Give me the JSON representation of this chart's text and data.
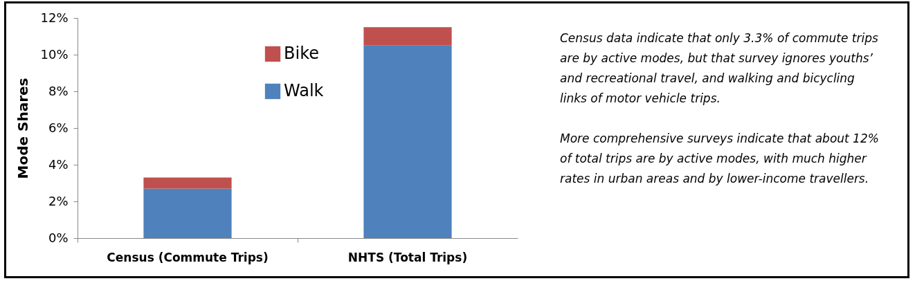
{
  "chart_data": {
    "type": "bar",
    "stacked": true,
    "ylabel": "Mode Shares",
    "categories": [
      "Census (Commute Trips)",
      "NHTS (Total Trips)"
    ],
    "series": [
      {
        "name": "Walk",
        "color": "#4f81bd",
        "values": [
          2.7,
          10.5
        ]
      },
      {
        "name": "Bike",
        "color": "#c0504d",
        "values": [
          0.6,
          1.0
        ]
      }
    ],
    "ylim": [
      0,
      12
    ],
    "yticks": [
      {
        "value": 0,
        "label": "0%"
      },
      {
        "value": 2,
        "label": "2%"
      },
      {
        "value": 4,
        "label": "4%"
      },
      {
        "value": 6,
        "label": "6%"
      },
      {
        "value": 8,
        "label": "8%"
      },
      {
        "value": 10,
        "label": "10%"
      },
      {
        "value": 12,
        "label": "12%"
      }
    ],
    "grid": false,
    "legend": "top",
    "annotations": [
      "Census data indicate that only 3.3% of commute trips are by active modes, but that survey ignores youths’ and recreational travel, and walking and bicycling links of motor vehicle trips.",
      "More comprehensive surveys indicate that about 12% of total trips are by active modes, with much higher rates in urban areas and by lower-income travellers."
    ]
  }
}
